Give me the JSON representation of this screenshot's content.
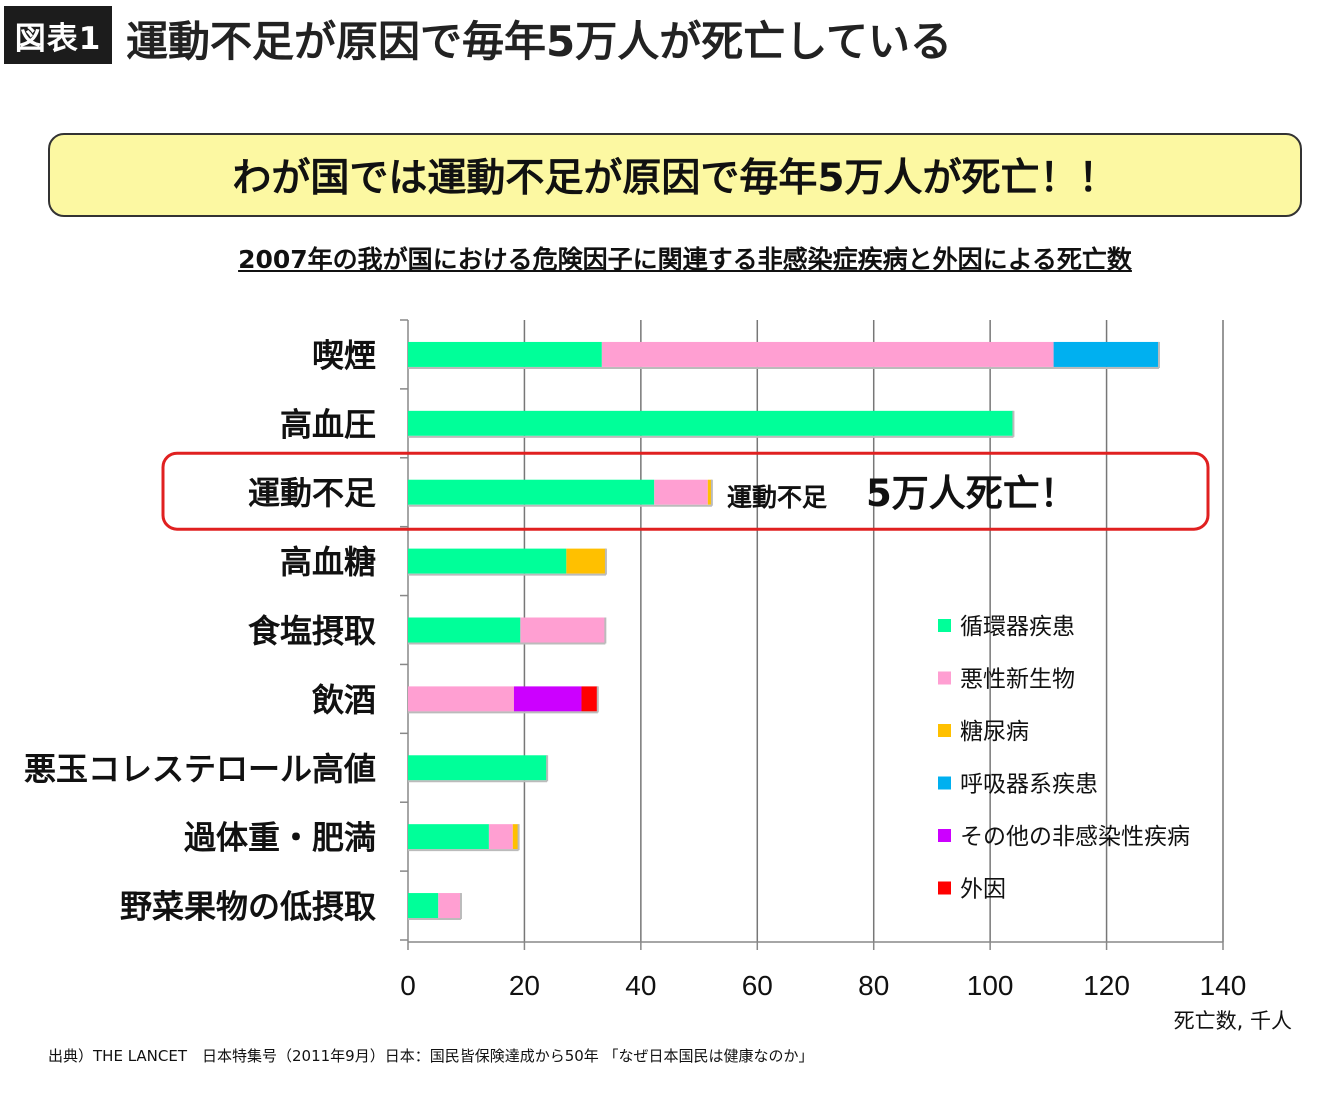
{
  "header": {
    "figure_label": "図表1",
    "title": "運動不足が原因で毎年5万人が死亡している"
  },
  "banner": {
    "text": "わが国では運動不足が原因で毎年5万人が死亡！！"
  },
  "chart_data": {
    "type": "bar",
    "orientation": "horizontal",
    "stacked": true,
    "title": "2007年の我が国における危険因子に関連する非感染症疾病と外因による死亡数",
    "xlabel": "死亡数, 千人",
    "ylabel": "",
    "xlim": [
      0,
      140
    ],
    "xticks": [
      0,
      20,
      40,
      60,
      80,
      100,
      120,
      140
    ],
    "grid": true,
    "legend_position": "right",
    "categories": [
      "喫煙",
      "高血圧",
      "運動不足",
      "高血糖",
      "食塩摂取",
      "飲酒",
      "悪玉コレステロール高値",
      "過体重・肥満",
      "野菜果物の低摂取"
    ],
    "series": [
      {
        "name": "循環器疾患",
        "color": "#00ff99",
        "values": [
          33.3,
          104,
          42.3,
          27.2,
          19.3,
          0,
          23.9,
          13.9,
          5.2
        ]
      },
      {
        "name": "悪性新生物",
        "color": "#ff9fd2",
        "values": [
          77.6,
          0,
          9.2,
          0,
          14.6,
          18.2,
          0,
          4.1,
          3.9
        ]
      },
      {
        "name": "糖尿病",
        "color": "#ffc000",
        "values": [
          0,
          0,
          0.7,
          6.8,
          0,
          0,
          0,
          1,
          0
        ]
      },
      {
        "name": "呼吸器系疾患",
        "color": "#00b0f0",
        "values": [
          18.1,
          0,
          0,
          0,
          0,
          0,
          0,
          0,
          0
        ]
      },
      {
        "name": "その他の非感染性疾病",
        "color": "#cc00ff",
        "values": [
          0,
          0,
          0,
          0,
          0,
          11.6,
          0,
          0,
          0
        ]
      },
      {
        "name": "外因",
        "color": "#ff0000",
        "values": [
          0,
          0,
          0,
          0,
          0,
          2.8,
          0,
          0,
          0
        ]
      }
    ],
    "highlight": {
      "category": "運動不足",
      "label_small": "運動不足",
      "label_big": "5万人死亡！",
      "border_color": "#e02020"
    }
  },
  "source": "出典）THE LANCET　日本特集号（2011年9月）日本：国民皆保険達成から50年 「なぜ日本国民は健康なのか」"
}
